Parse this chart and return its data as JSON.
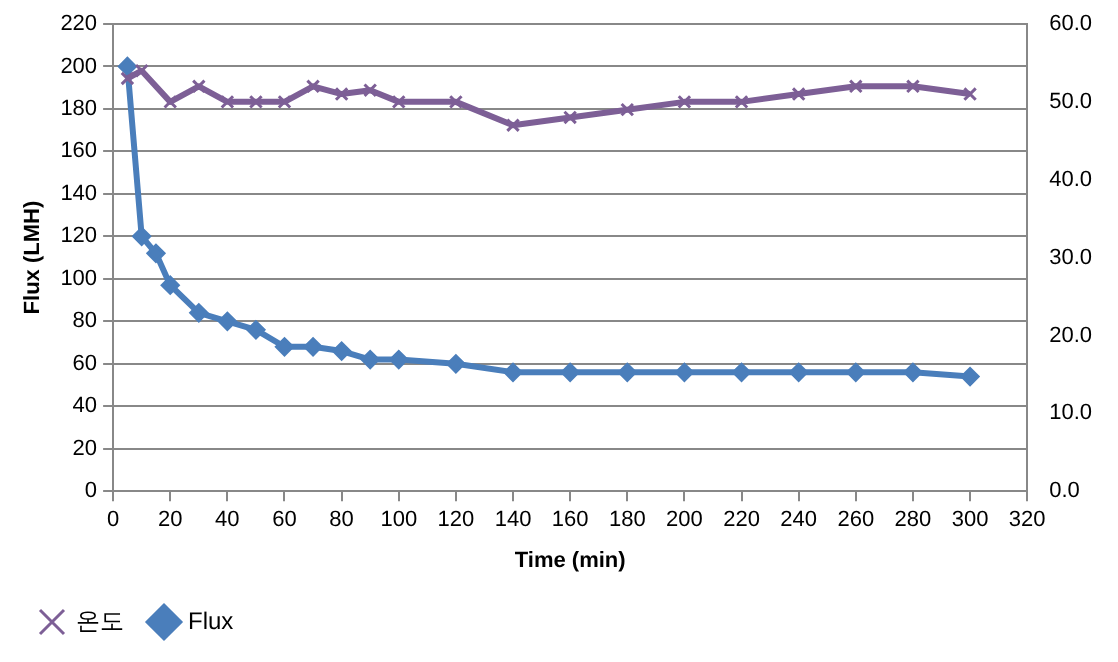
{
  "chart_data": {
    "type": "line",
    "xlabel": "Time (min)",
    "ylabel": "Flux (LMH)",
    "xlim": [
      0,
      320
    ],
    "xticks": [
      0,
      20,
      40,
      60,
      80,
      100,
      120,
      140,
      160,
      180,
      200,
      220,
      240,
      260,
      280,
      300,
      320
    ],
    "ylim": [
      0,
      220
    ],
    "yticks": [
      0,
      20,
      40,
      60,
      80,
      100,
      120,
      140,
      160,
      180,
      200,
      220
    ],
    "y2lim": [
      0,
      60
    ],
    "y2ticks": [
      {
        "value": 0,
        "label": "0.0"
      },
      {
        "value": 10,
        "label": "10.0"
      },
      {
        "value": 20,
        "label": "20.0"
      },
      {
        "value": 30,
        "label": "30.0"
      },
      {
        "value": 40,
        "label": "40.0"
      },
      {
        "value": 50,
        "label": "50.0"
      },
      {
        "value": 60,
        "label": "60.0"
      }
    ],
    "grid": "y",
    "legend": "bottom",
    "line_style": "solid",
    "series": [
      {
        "name": "Flux",
        "color": "#4a7ebb",
        "marker": "diamond",
        "x": [
          5,
          10,
          15,
          20,
          30,
          40,
          50,
          60,
          70,
          80,
          90,
          100,
          120,
          140,
          160,
          180,
          200,
          220,
          240,
          260,
          280,
          300
        ],
        "values": [
          200,
          120,
          112,
          97,
          84,
          80,
          76,
          68,
          68,
          66,
          62,
          62,
          60,
          56,
          56,
          56,
          56,
          56,
          56,
          56,
          56,
          54
        ]
      },
      {
        "name": "온도",
        "color": "#7d5f96",
        "marker": "cross",
        "axis": "y2",
        "x": [
          5,
          10,
          20,
          30,
          40,
          50,
          60,
          70,
          80,
          90,
          100,
          120,
          140,
          160,
          180,
          200,
          220,
          240,
          260,
          280,
          300
        ],
        "values": [
          53,
          54,
          50,
          52,
          50,
          50,
          50,
          52,
          51,
          51.5,
          50,
          50,
          47,
          48,
          49,
          50,
          50,
          51,
          52,
          52,
          51
        ]
      }
    ]
  }
}
